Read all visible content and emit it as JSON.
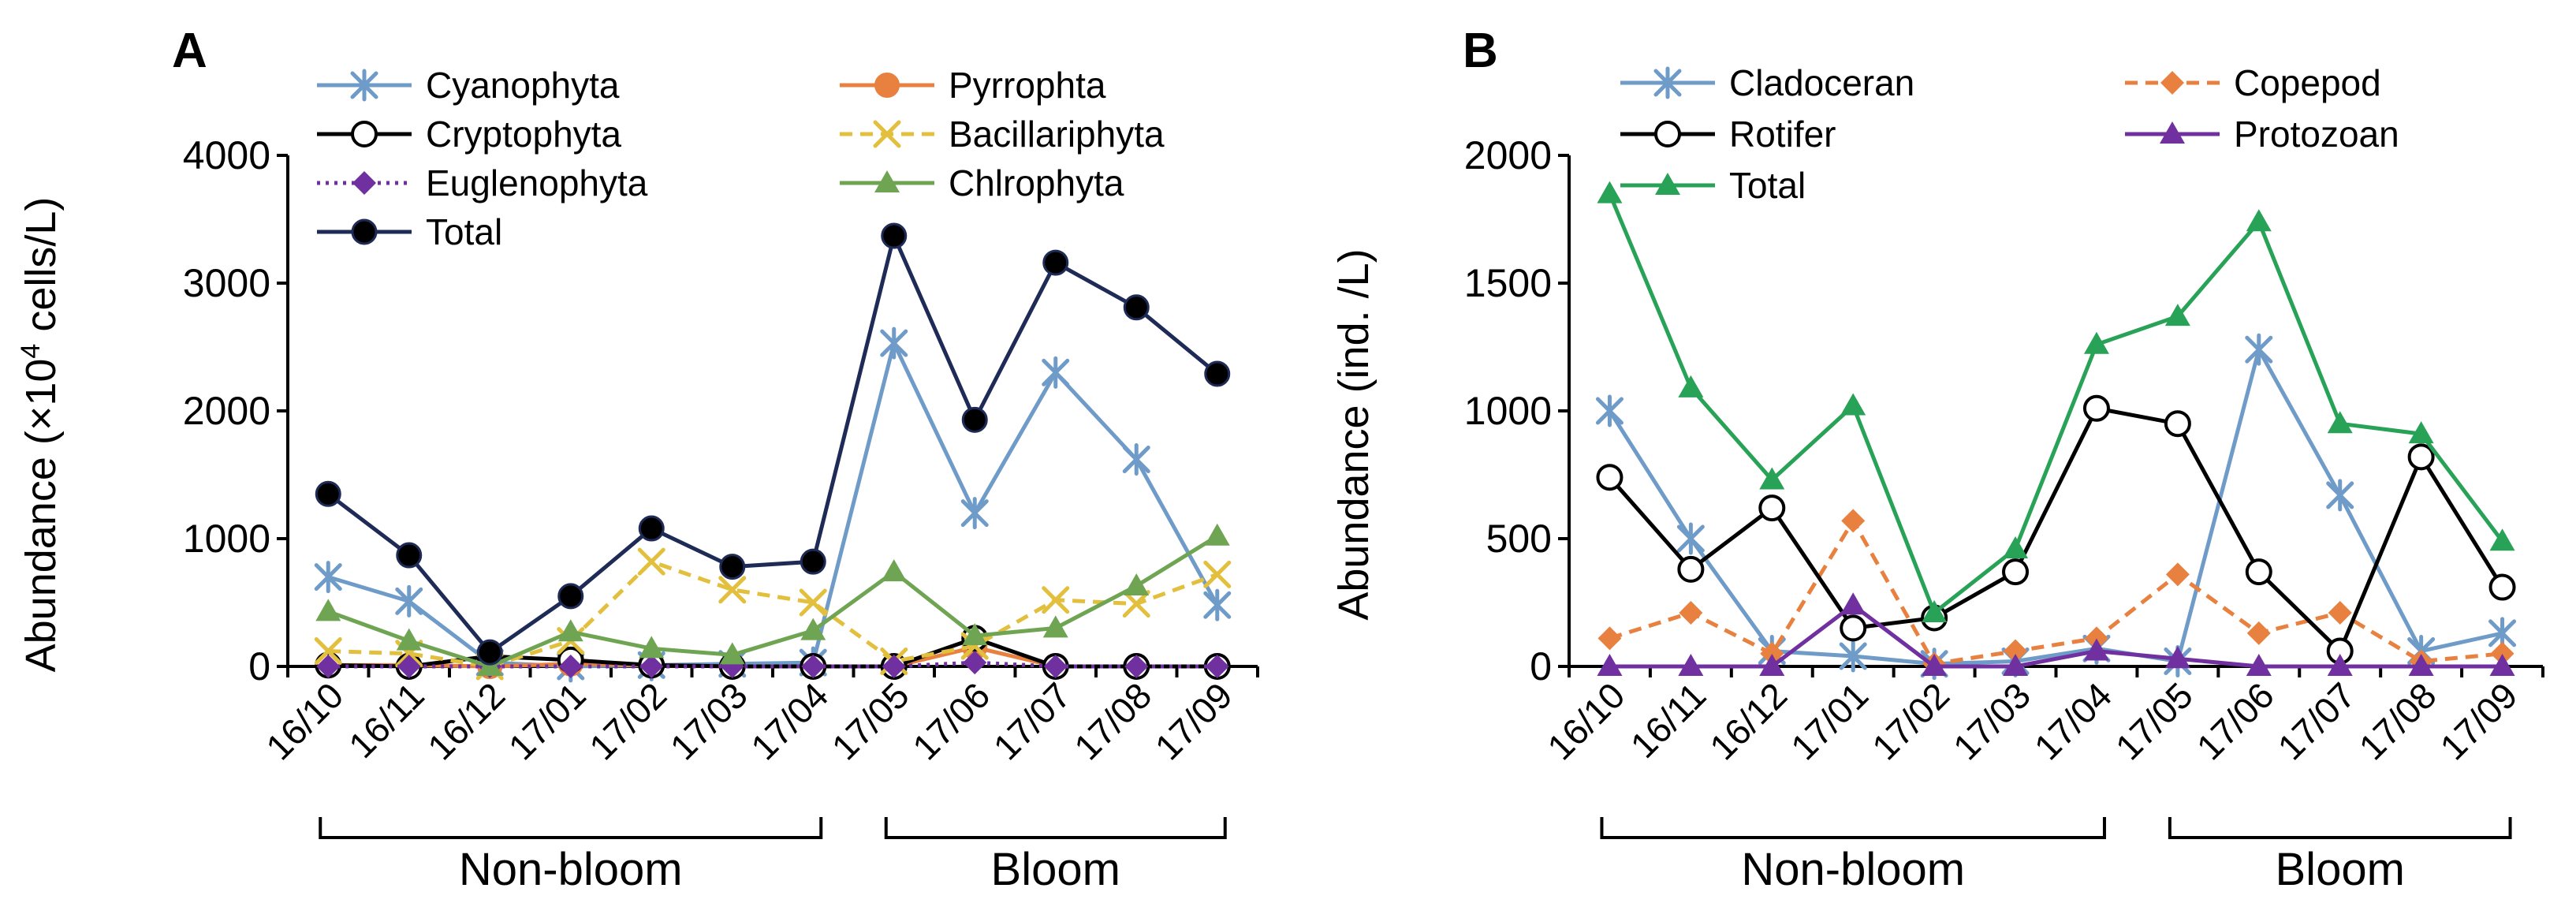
{
  "chart_data": [
    {
      "type": "line",
      "panel_label": "A",
      "ylabel_prefix": "Abundance (×10",
      "ylabel_sup": "4",
      "ylabel_suffix": " cells/L)",
      "ylim": [
        0,
        4000
      ],
      "yticks": [
        "0",
        "1000",
        "2000",
        "3000",
        "4000"
      ],
      "categories": [
        "16/10",
        "16/11",
        "16/12",
        "17/01",
        "17/02",
        "17/03",
        "17/04",
        "17/05",
        "17/06",
        "17/07",
        "17/08",
        "17/09"
      ],
      "groups": [
        {
          "label": "Non-bloom",
          "from": 0,
          "to": 6
        },
        {
          "label": "Bloom",
          "from": 7,
          "to": 11
        }
      ],
      "series": [
        {
          "name": "Cyanophyta",
          "color": "#6f9bc9",
          "marker": "asterisk",
          "dash": "solid",
          "values": [
            700,
            510,
            30,
            0,
            10,
            20,
            30,
            2530,
            1200,
            2300,
            1620,
            480
          ]
        },
        {
          "name": "Pyrrophta",
          "color": "#e8813f",
          "marker": "circle-filled",
          "dash": "solid",
          "values": [
            10,
            10,
            0,
            20,
            10,
            0,
            0,
            0,
            150,
            0,
            0,
            0
          ]
        },
        {
          "name": "Cryptophyta",
          "color": "#000000",
          "marker": "circle-open",
          "dash": "solid",
          "values": [
            10,
            0,
            80,
            50,
            10,
            0,
            0,
            0,
            220,
            0,
            0,
            0
          ]
        },
        {
          "name": "Bacillariphyta",
          "color": "#e2bf3c",
          "marker": "x",
          "dash": "dashed",
          "values": [
            120,
            100,
            0,
            200,
            820,
            600,
            500,
            40,
            160,
            520,
            490,
            720
          ]
        },
        {
          "name": "Euglenophyta",
          "color": "#7030a0",
          "marker": "diamond",
          "dash": "dotted",
          "values": [
            0,
            0,
            0,
            0,
            0,
            0,
            0,
            0,
            30,
            0,
            0,
            0
          ]
        },
        {
          "name": "Chlrophyta",
          "color": "#6fa552",
          "marker": "triangle",
          "dash": "solid",
          "values": [
            430,
            200,
            0,
            270,
            140,
            90,
            280,
            740,
            240,
            300,
            630,
            1020
          ]
        },
        {
          "name": "Total",
          "color": "#1f2b57",
          "marker": "circle-filled-black",
          "dash": "solid",
          "values": [
            1350,
            870,
            110,
            550,
            1080,
            780,
            820,
            3370,
            1930,
            3160,
            2810,
            2290
          ]
        }
      ]
    },
    {
      "type": "line",
      "panel_label": "B",
      "ylabel": "Abundance (ind. /L)",
      "ylim": [
        0,
        2000
      ],
      "yticks": [
        "0",
        "500",
        "1000",
        "1500",
        "2000"
      ],
      "categories": [
        "16/10",
        "16/11",
        "16/12",
        "17/01",
        "17/02",
        "17/03",
        "17/04",
        "17/05",
        "17/06",
        "17/07",
        "17/08",
        "17/09"
      ],
      "groups": [
        {
          "label": "Non-bloom",
          "from": 0,
          "to": 6
        },
        {
          "label": "Bloom",
          "from": 7,
          "to": 11
        }
      ],
      "series": [
        {
          "name": "Cladoceran",
          "color": "#6f9bc9",
          "marker": "asterisk",
          "dash": "solid",
          "values": [
            1000,
            500,
            60,
            40,
            10,
            20,
            70,
            20,
            1240,
            670,
            60,
            130
          ]
        },
        {
          "name": "Copepod",
          "color": "#e8813f",
          "marker": "diamond",
          "dash": "dashed",
          "values": [
            110,
            210,
            50,
            570,
            10,
            60,
            110,
            360,
            130,
            210,
            20,
            50
          ]
        },
        {
          "name": "Rotifer",
          "color": "#000000",
          "marker": "circle-open",
          "dash": "solid",
          "values": [
            740,
            380,
            620,
            150,
            190,
            370,
            1010,
            950,
            370,
            60,
            820,
            310
          ]
        },
        {
          "name": "Protozoan",
          "color": "#7030a0",
          "marker": "triangle",
          "dash": "solid",
          "values": [
            0,
            0,
            0,
            240,
            0,
            0,
            60,
            30,
            0,
            0,
            0,
            0
          ]
        },
        {
          "name": "Total",
          "color": "#27a257",
          "marker": "triangle",
          "dash": "solid",
          "values": [
            1850,
            1090,
            730,
            1020,
            210,
            460,
            1260,
            1370,
            1740,
            950,
            910,
            490
          ]
        }
      ]
    }
  ]
}
